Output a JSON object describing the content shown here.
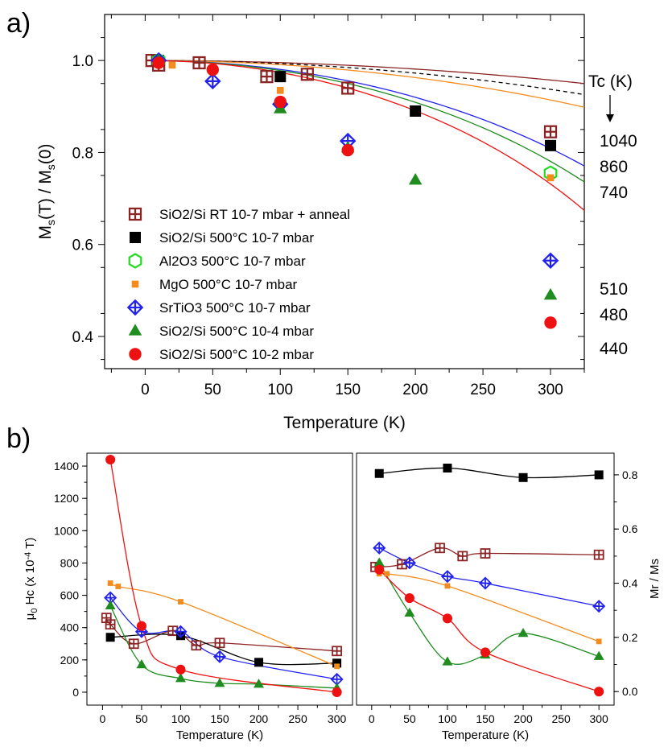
{
  "panel_a": {
    "letter": "a)",
    "tc_header": "Tc (K)",
    "tc_labels": [
      "1040",
      "860",
      "740",
      "510",
      "480",
      "440"
    ]
  },
  "panel_b": {
    "letter": "b)"
  },
  "chart_data": [
    {
      "type": "line",
      "panel": "a",
      "xlabel": "Temperature (K)",
      "ylabel": "Ms(T) / Ms(0)",
      "xlim": [
        -30,
        325
      ],
      "ylim": [
        0.33,
        1.1
      ],
      "xticks": [
        0,
        50,
        100,
        150,
        200,
        250,
        300
      ],
      "yticks": [
        0.4,
        0.6,
        0.8,
        1.0
      ],
      "ytick_labels": [
        "0.4",
        "0.6",
        "0.8",
        "1.0"
      ],
      "legend_position": "bottom-left",
      "series": [
        {
          "name": "SiO2/Si RT 10-7 mbar + anneal",
          "marker": "square-cross",
          "color": "#8B2323",
          "x": [
            5,
            10,
            40,
            90,
            120,
            150,
            300
          ],
          "y": [
            1.0,
            0.99,
            0.995,
            0.965,
            0.97,
            0.94,
            0.845
          ],
          "tc": 1040
        },
        {
          "name": "SiO2/Si 500°C 10-7 mbar",
          "marker": "square",
          "color": "#000000",
          "x": [
            10,
            100,
            200,
            300
          ],
          "y": [
            1.0,
            0.965,
            0.89,
            0.815
          ],
          "tc": 860,
          "fit_dashed": true
        },
        {
          "name": "Al2O3 500°C 10-7 mbar",
          "marker": "hexagon-open",
          "color": "#22DD22",
          "x": [
            10,
            300
          ],
          "y": [
            1.0,
            0.755
          ],
          "tc": 740
        },
        {
          "name": "MgO 500°C 10-7 mbar",
          "marker": "small-square",
          "color": "#F28C1E",
          "x": [
            10,
            20,
            100,
            300
          ],
          "y": [
            1.0,
            0.99,
            0.935,
            0.745
          ],
          "tc": 740
        },
        {
          "name": "SrTiO3 500°C 10-7 mbar",
          "marker": "diamond-cross",
          "color": "#2222EE",
          "x": [
            10,
            50,
            100,
            150,
            300
          ],
          "y": [
            1.0,
            0.955,
            0.905,
            0.825,
            0.565
          ],
          "tc": 510
        },
        {
          "name": "SiO2/Si 500°C 10-4 mbar",
          "marker": "triangle",
          "color": "#1E8C1E",
          "x": [
            10,
            100,
            150,
            200,
            300
          ],
          "y": [
            1.0,
            0.895,
            0.81,
            0.74,
            0.49
          ],
          "tc": 480
        },
        {
          "name": "SiO2/Si 500°C 10-2 mbar",
          "marker": "circle",
          "color": "#EE1111",
          "x": [
            10,
            50,
            100,
            150,
            300
          ],
          "y": [
            0.995,
            0.98,
            0.91,
            0.805,
            0.43
          ],
          "tc": 440
        }
      ]
    },
    {
      "type": "line",
      "panel": "b-left",
      "xlabel": "Temperature (K)",
      "ylabel": "μ0 Hc (x 10-4 T)",
      "xlim": [
        -20,
        320
      ],
      "ylim": [
        -80,
        1480
      ],
      "xticks": [
        0,
        50,
        100,
        150,
        200,
        250,
        300
      ],
      "yticks": [
        0,
        200,
        400,
        600,
        800,
        1000,
        1200,
        1400
      ],
      "series": [
        {
          "name": "SiO2/Si RT 10-7 mbar + anneal",
          "marker": "square-cross",
          "color": "#8B2323",
          "x": [
            5,
            10,
            40,
            90,
            120,
            150,
            300
          ],
          "y": [
            460,
            420,
            300,
            380,
            290,
            305,
            255
          ]
        },
        {
          "name": "SiO2/Si 500°C 10-7 mbar",
          "marker": "square",
          "color": "#000000",
          "x": [
            10,
            100,
            200,
            300
          ],
          "y": [
            340,
            350,
            185,
            180
          ]
        },
        {
          "name": "MgO 500°C 10-7 mbar",
          "marker": "small-square",
          "color": "#F28C1E",
          "x": [
            10,
            20,
            100,
            300
          ],
          "y": [
            675,
            655,
            560,
            160
          ]
        },
        {
          "name": "SrTiO3 500°C 10-7 mbar",
          "marker": "diamond-cross",
          "color": "#2222EE",
          "x": [
            10,
            50,
            100,
            150,
            300
          ],
          "y": [
            585,
            375,
            375,
            220,
            80
          ]
        },
        {
          "name": "SiO2/Si 500°C 10-4 mbar",
          "marker": "triangle",
          "color": "#1E8C1E",
          "x": [
            10,
            50,
            100,
            150,
            200,
            300
          ],
          "y": [
            535,
            170,
            85,
            55,
            50,
            25
          ]
        },
        {
          "name": "SiO2/Si 500°C 10-2 mbar",
          "marker": "circle",
          "color": "#EE1111",
          "x": [
            10,
            50,
            100,
            300
          ],
          "y": [
            1440,
            410,
            140,
            0
          ]
        }
      ]
    },
    {
      "type": "line",
      "panel": "b-right",
      "xlabel": "Temperature (K)",
      "ylabel": "Mr / Ms",
      "xlim": [
        -20,
        320
      ],
      "ylim": [
        -0.05,
        0.88
      ],
      "xticks": [
        0,
        50,
        100,
        150,
        200,
        250,
        300
      ],
      "yticks": [
        0.0,
        0.2,
        0.4,
        0.6,
        0.8
      ],
      "ytick_labels": [
        "0.0",
        "0.2",
        "0.4",
        "0.6",
        "0.8"
      ],
      "series": [
        {
          "name": "SiO2/Si RT 10-7 mbar + anneal",
          "marker": "square-cross",
          "color": "#8B2323",
          "x": [
            5,
            40,
            90,
            120,
            150,
            300
          ],
          "y": [
            0.46,
            0.47,
            0.53,
            0.5,
            0.51,
            0.505
          ]
        },
        {
          "name": "SiO2/Si 500°C 10-7 mbar",
          "marker": "square",
          "color": "#000000",
          "x": [
            10,
            100,
            200,
            300
          ],
          "y": [
            0.805,
            0.825,
            0.79,
            0.8
          ]
        },
        {
          "name": "MgO 500°C 10-7 mbar",
          "marker": "small-square",
          "color": "#F28C1E",
          "x": [
            10,
            20,
            100,
            300
          ],
          "y": [
            0.435,
            0.435,
            0.39,
            0.185
          ]
        },
        {
          "name": "SrTiO3 500°C 10-7 mbar",
          "marker": "diamond-cross",
          "color": "#2222EE",
          "x": [
            10,
            50,
            100,
            150,
            300
          ],
          "y": [
            0.53,
            0.475,
            0.425,
            0.4,
            0.315
          ]
        },
        {
          "name": "SiO2/Si 500°C 10-4 mbar",
          "marker": "triangle",
          "color": "#1E8C1E",
          "x": [
            10,
            50,
            100,
            150,
            200,
            300
          ],
          "y": [
            0.475,
            0.29,
            0.11,
            0.135,
            0.215,
            0.13
          ]
        },
        {
          "name": "SiO2/Si 500°C 10-2 mbar",
          "marker": "circle",
          "color": "#EE1111",
          "x": [
            10,
            50,
            100,
            150,
            300
          ],
          "y": [
            0.45,
            0.345,
            0.27,
            0.145,
            0.0
          ]
        }
      ]
    }
  ]
}
